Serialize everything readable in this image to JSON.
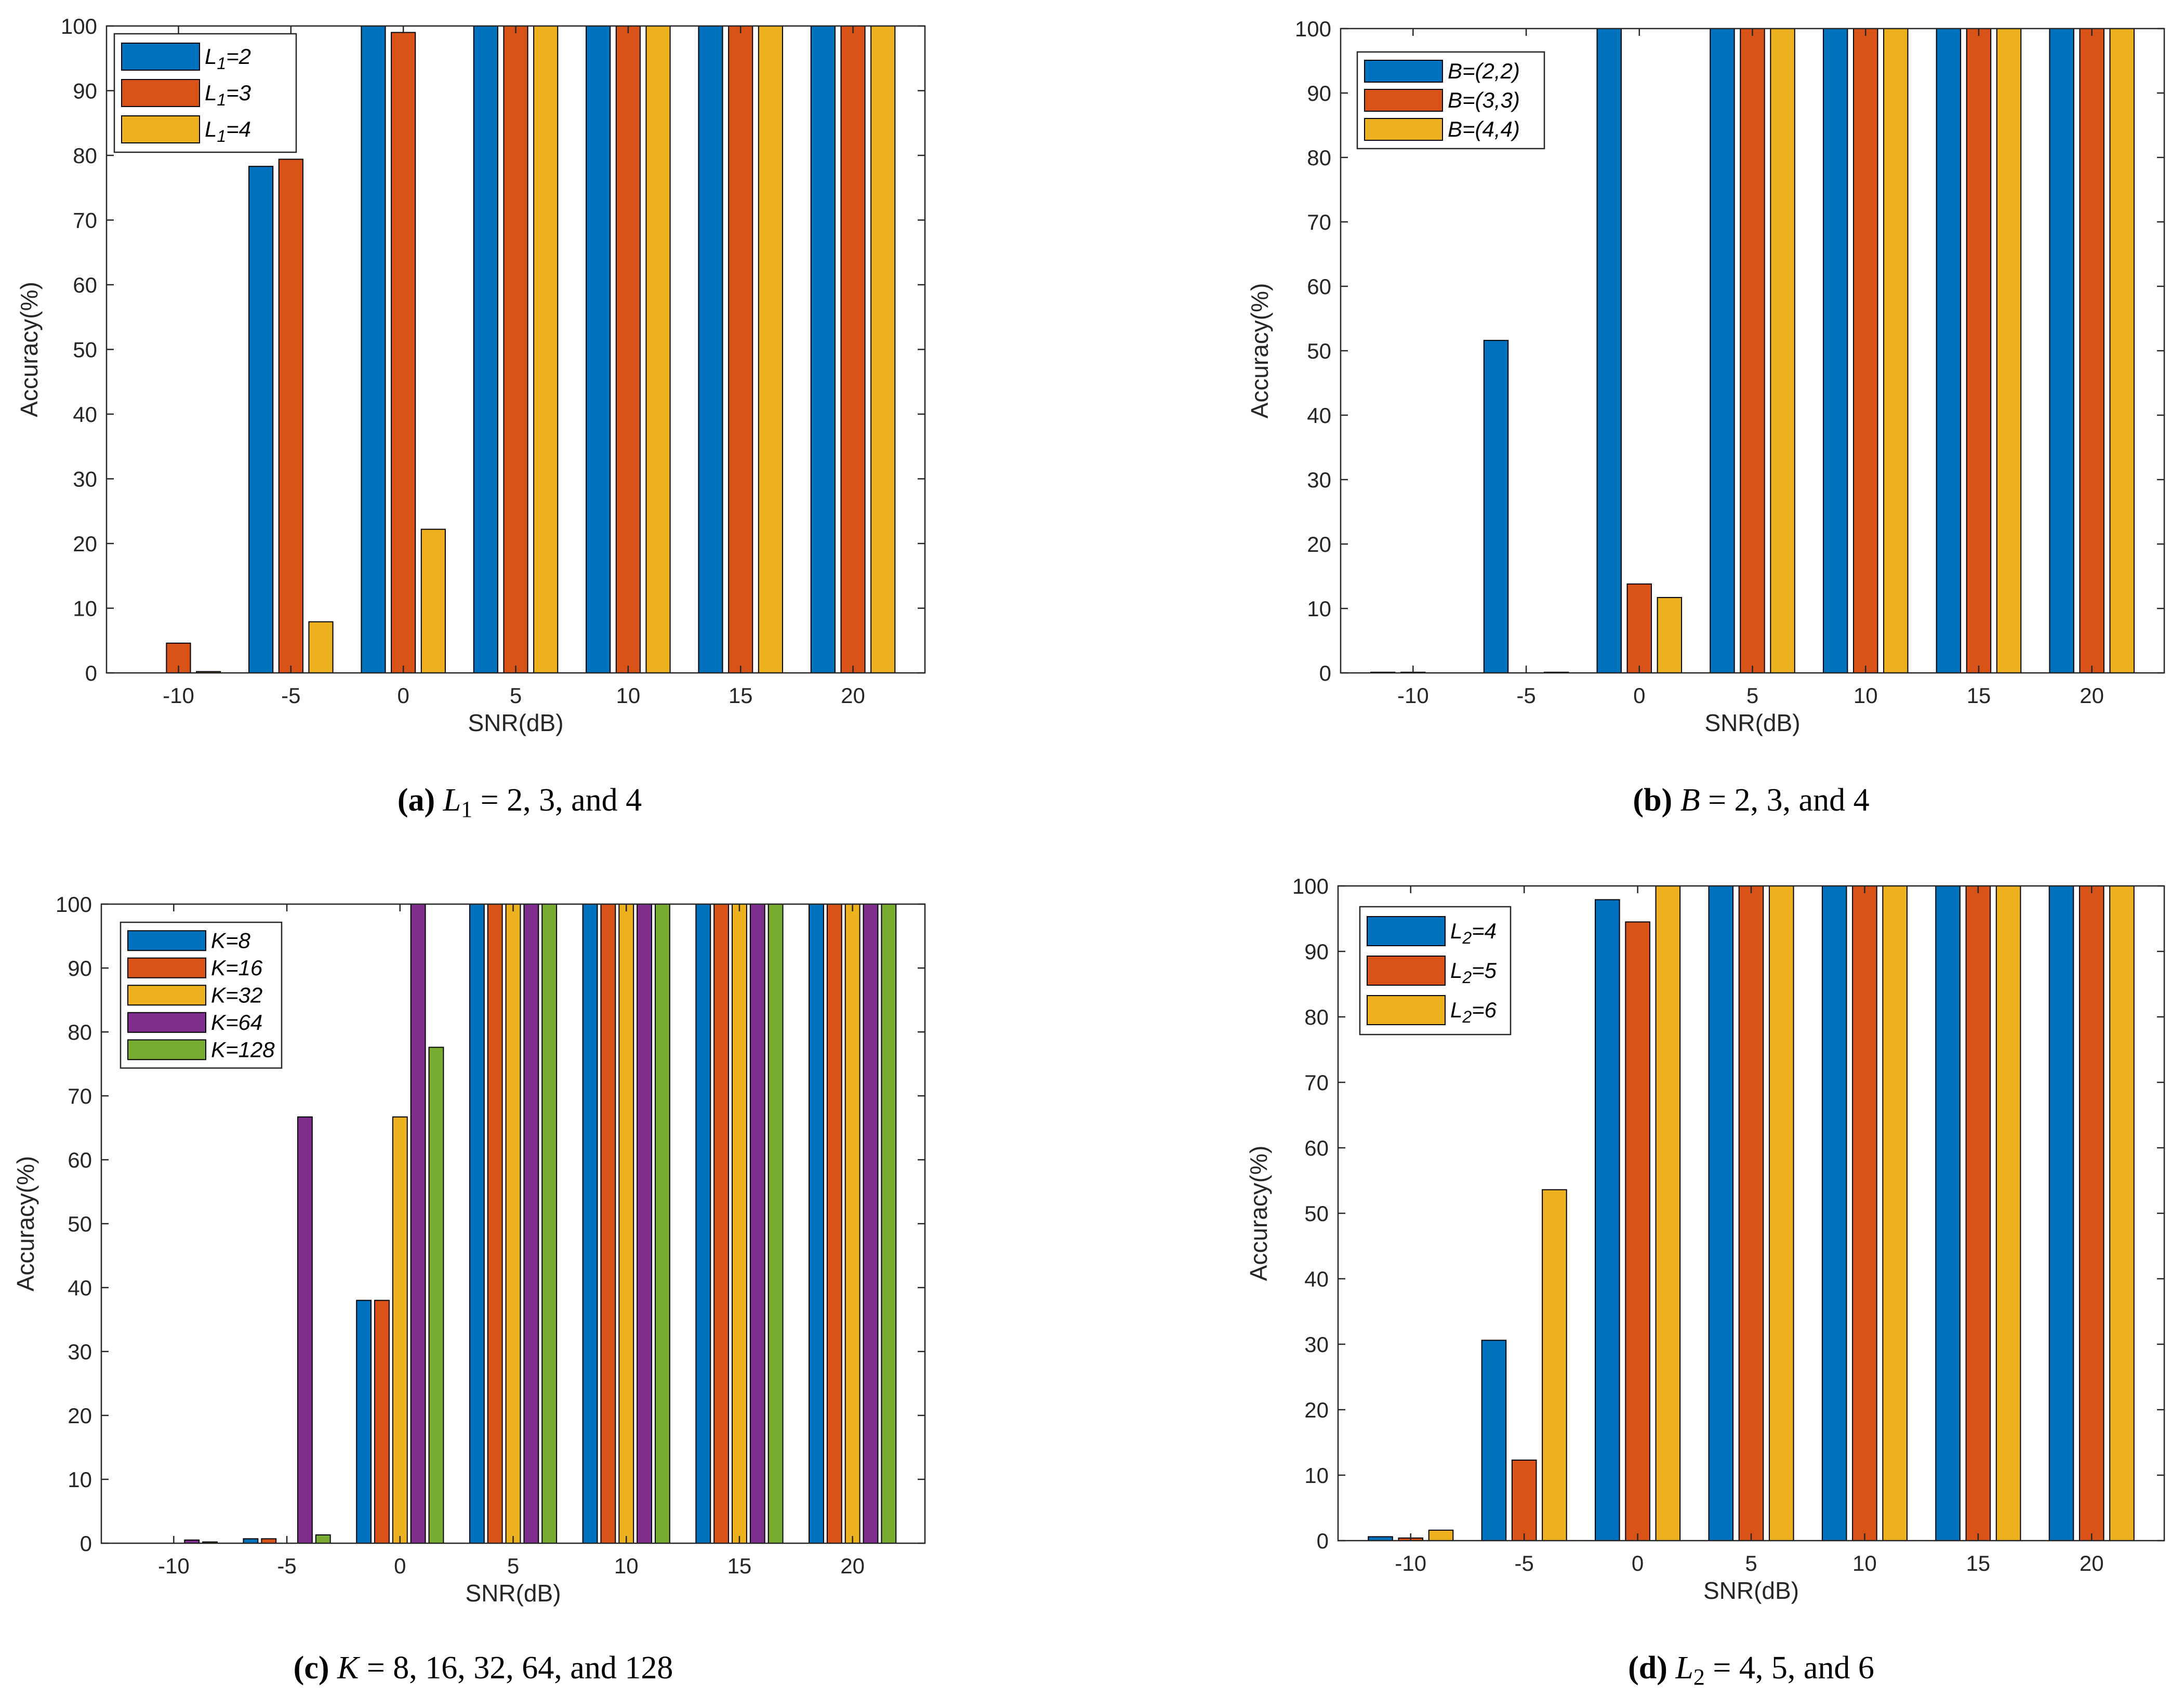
{
  "colors": [
    "#0072BD",
    "#D95319",
    "#EDB120",
    "#7E2F8E",
    "#77AC30"
  ],
  "chart_data": [
    {
      "type": "bar",
      "id": "a",
      "caption": {
        "letter": "(a)",
        "expr": "L",
        "sub": "1",
        "rest": " = 2, 3, and 4"
      },
      "xlabel": "SNR(dB)",
      "ylabel": "Accuracy(%)",
      "ylim": [
        0,
        100
      ],
      "yticks": [
        "0",
        "10",
        "20",
        "30",
        "40",
        "50",
        "60",
        "70",
        "80",
        "90",
        "100"
      ],
      "categories": [
        "-10",
        "-5",
        "0",
        "5",
        "10",
        "15",
        "20"
      ],
      "legend_position": "top-left",
      "series": [
        {
          "name": "L1=2",
          "label_main": "L",
          "label_sub": "1",
          "label_rest": "=2",
          "values": [
            0,
            78.3,
            100,
            100,
            100,
            100,
            100
          ]
        },
        {
          "name": "L1=3",
          "label_main": "L",
          "label_sub": "1",
          "label_rest": "=3",
          "values": [
            4.6,
            79.4,
            99,
            100,
            100,
            100,
            100
          ]
        },
        {
          "name": "L1=4",
          "label_main": "L",
          "label_sub": "1",
          "label_rest": "=4",
          "values": [
            0.2,
            7.9,
            22.2,
            100,
            100,
            100,
            100
          ]
        }
      ]
    },
    {
      "type": "bar",
      "id": "b",
      "caption": {
        "letter": "(b)",
        "expr": "B",
        "sub": "",
        "rest": " = 2, 3, and 4"
      },
      "xlabel": "SNR(dB)",
      "ylabel": "Accuracy(%)",
      "ylim": [
        0,
        100
      ],
      "yticks": [
        "0",
        "10",
        "20",
        "30",
        "40",
        "50",
        "60",
        "70",
        "80",
        "90",
        "100"
      ],
      "categories": [
        "-10",
        "-5",
        "0",
        "5",
        "10",
        "15",
        "20"
      ],
      "legend_position": "top-left",
      "series": [
        {
          "name": "B=(2,2)",
          "label_main": "B=(2,2)",
          "label_sub": "",
          "label_rest": "",
          "values": [
            0.1,
            51.6,
            100,
            100,
            100,
            100,
            100
          ]
        },
        {
          "name": "B=(3,3)",
          "label_main": "B=(3,3)",
          "label_sub": "",
          "label_rest": "",
          "values": [
            0.1,
            0,
            13.8,
            100,
            100,
            100,
            100
          ]
        },
        {
          "name": "B=(4,4)",
          "label_main": "B=(4,4)",
          "label_sub": "",
          "label_rest": "",
          "values": [
            0,
            0.1,
            11.7,
            100,
            100,
            100,
            100
          ]
        }
      ]
    },
    {
      "type": "bar",
      "id": "c",
      "caption": {
        "letter": "(c)",
        "expr": "K",
        "sub": "",
        "rest": " = 8, 16, 32, 64, and 128"
      },
      "xlabel": "SNR(dB)",
      "ylabel": "Accuracy(%)",
      "ylim": [
        0,
        100
      ],
      "yticks": [
        "0",
        "10",
        "20",
        "30",
        "40",
        "50",
        "60",
        "70",
        "80",
        "90",
        "100"
      ],
      "categories": [
        "-10",
        "-5",
        "0",
        "5",
        "10",
        "15",
        "20"
      ],
      "legend_position": "top-left",
      "series": [
        {
          "name": "K=8",
          "label_main": "K=8",
          "label_sub": "",
          "label_rest": "",
          "values": [
            0,
            0.7,
            38,
            100,
            100,
            100,
            100
          ]
        },
        {
          "name": "K=16",
          "label_main": "K=16",
          "label_sub": "",
          "label_rest": "",
          "values": [
            0,
            0.7,
            38,
            100,
            100,
            100,
            100
          ]
        },
        {
          "name": "K=32",
          "label_main": "K=32",
          "label_sub": "",
          "label_rest": "",
          "values": [
            0,
            0,
            66.7,
            100,
            100,
            100,
            100
          ]
        },
        {
          "name": "K=64",
          "label_main": "K=64",
          "label_sub": "",
          "label_rest": "",
          "values": [
            0.5,
            66.7,
            100,
            100,
            100,
            100,
            100
          ]
        },
        {
          "name": "K=128",
          "label_main": "K=128",
          "label_sub": "",
          "label_rest": "",
          "values": [
            0.2,
            1.3,
            77.6,
            100,
            100,
            100,
            100
          ]
        }
      ]
    },
    {
      "type": "bar",
      "id": "d",
      "caption": {
        "letter": "(d)",
        "expr": "L",
        "sub": "2",
        "rest": " = 4, 5, and 6"
      },
      "xlabel": "SNR(dB)",
      "ylabel": "Accuracy(%)",
      "ylim": [
        0,
        100
      ],
      "yticks": [
        "0",
        "10",
        "20",
        "30",
        "40",
        "50",
        "60",
        "70",
        "80",
        "90",
        "100"
      ],
      "categories": [
        "-10",
        "-5",
        "0",
        "5",
        "10",
        "15",
        "20"
      ],
      "legend_position": "top-left",
      "series": [
        {
          "name": "L2=4",
          "label_main": "L",
          "label_sub": "2",
          "label_rest": "=4",
          "values": [
            0.6,
            30.6,
            97.9,
            100,
            100,
            100,
            100
          ]
        },
        {
          "name": "L2=5",
          "label_main": "L",
          "label_sub": "2",
          "label_rest": "=5",
          "values": [
            0.4,
            12.3,
            94.5,
            100,
            100,
            100,
            100
          ]
        },
        {
          "name": "L2=6",
          "label_main": "L",
          "label_sub": "2",
          "label_rest": "=6",
          "values": [
            1.6,
            53.6,
            100,
            100,
            100,
            100,
            100
          ]
        }
      ]
    }
  ]
}
